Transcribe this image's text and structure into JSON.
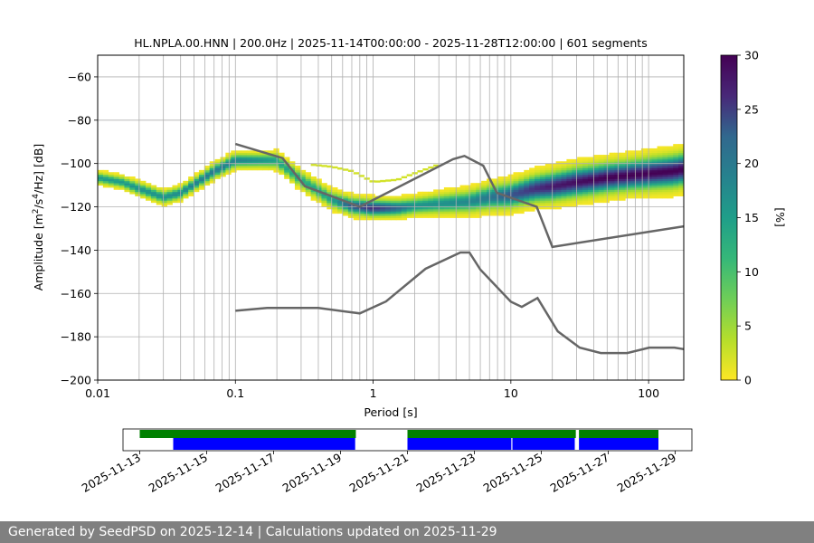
{
  "chart_data": [
    {
      "type": "heatmap",
      "title": "HL.NPLA.00.HNN | 200.0Hz | 2025-11-14T00:00:00 - 2025-11-28T12:00:00 | 601 segments",
      "xlabel": "Period [s]",
      "ylabel_parts": [
        "Amplitude [m",
        "2",
        "/s",
        "4",
        "/Hz] [dB]"
      ],
      "xscale": "log",
      "xlim": [
        0.01,
        180
      ],
      "ylim": [
        -200,
        -50
      ],
      "grid": true,
      "xticks": [
        0.01,
        0.1,
        1,
        10,
        100
      ],
      "xtick_labels": [
        "0.01",
        "0.1",
        "1",
        "10",
        "100"
      ],
      "yticks": [
        -200,
        -180,
        -160,
        -140,
        -120,
        -100,
        -80,
        -60
      ],
      "ytick_labels": [
        "−200",
        "−180",
        "−160",
        "−140",
        "−120",
        "−100",
        "−80",
        "−60"
      ],
      "colorbar": {
        "label": "[%]",
        "colormap": "viridis_r",
        "range": [
          0,
          30
        ],
        "ticks": [
          0,
          5,
          10,
          15,
          20,
          25,
          30
        ],
        "tick_labels": [
          "0",
          "5",
          "10",
          "15",
          "20",
          "25",
          "30"
        ]
      },
      "psd_density": {
        "periods": [
          0.01,
          0.015,
          0.02,
          0.03,
          0.04,
          0.05,
          0.07,
          0.1,
          0.15,
          0.2,
          0.3,
          0.5,
          0.7,
          1,
          1.5,
          2,
          3,
          5,
          7,
          10,
          15,
          20,
          30,
          50,
          70,
          100,
          150,
          180
        ],
        "mode_db": [
          -107,
          -109,
          -112,
          -116,
          -114,
          -110,
          -104,
          -99,
          -99,
          -99,
          -108,
          -117,
          -120,
          -121,
          -121,
          -120,
          -119,
          -118,
          -116,
          -115,
          -112,
          -111,
          -109,
          -107,
          -106,
          -105,
          -104,
          -103
        ],
        "spread_db": [
          8,
          8,
          9,
          9,
          9,
          9,
          10,
          10,
          10,
          11,
          12,
          12,
          12,
          12,
          12,
          12,
          14,
          16,
          18,
          19,
          20,
          21,
          22,
          22,
          22,
          23,
          24,
          24
        ],
        "peak_percent": [
          14,
          14,
          15,
          15,
          16,
          17,
          18,
          17,
          15,
          13,
          12,
          13,
          22,
          26,
          20,
          15,
          15,
          16,
          18,
          22,
          26,
          28,
          29,
          30,
          30,
          30,
          30,
          30
        ]
      },
      "secondary_band": {
        "periods": [
          0.35,
          0.5,
          0.7,
          1,
          1.5,
          2,
          3
        ],
        "db": [
          -101,
          -102,
          -104,
          -109,
          -108,
          -105,
          -101
        ],
        "percent": 2
      },
      "series": [
        {
          "name": "NHNM",
          "color": "#666666",
          "x": [
            0.1,
            0.22,
            0.32,
            0.8,
            3.8,
            4.6,
            6.3,
            7.9,
            15.4,
            20,
            180
          ],
          "y": [
            -91,
            -97.5,
            -110.5,
            -120,
            -98,
            -96.5,
            -101,
            -113.5,
            -120,
            -138.5,
            -129
          ]
        },
        {
          "name": "NLNM",
          "color": "#666666",
          "x": [
            0.1,
            0.17,
            0.4,
            0.8,
            1.24,
            2.4,
            4.3,
            5,
            6,
            10,
            12,
            15.6,
            21.9,
            31.6,
            45,
            70,
            101,
            154,
            180
          ],
          "y": [
            -168,
            -166.7,
            -166.7,
            -169.2,
            -163.7,
            -148.6,
            -141.1,
            -141.1,
            -149,
            -163.8,
            -166.2,
            -162.1,
            -177.5,
            -185,
            -187.5,
            -187.5,
            -185,
            -185,
            -185.7
          ]
        }
      ]
    },
    {
      "type": "timeline",
      "x_range": [
        "2025-11-12T12:00",
        "2025-11-29T12:00"
      ],
      "xtick_labels": [
        "2025-11-13",
        "2025-11-15",
        "2025-11-17",
        "2025-11-19",
        "2025-11-21",
        "2025-11-23",
        "2025-11-25",
        "2025-11-27",
        "2025-11-29"
      ],
      "xticks": [
        "2025-11-13",
        "2025-11-15",
        "2025-11-17",
        "2025-11-19",
        "2025-11-21",
        "2025-11-23",
        "2025-11-25",
        "2025-11-27",
        "2025-11-29"
      ],
      "data_available": {
        "color": "#008000",
        "segments": [
          [
            "2025-11-13T00:00",
            "2025-11-19T11:00"
          ],
          [
            "2025-11-21T00:00",
            "2025-11-26T00:45"
          ],
          [
            "2025-11-26T03:00",
            "2025-11-28T12:00"
          ]
        ]
      },
      "psd_computed": {
        "color": "#0000ff",
        "segments": [
          [
            "2025-11-14T00:00",
            "2025-11-19T10:30"
          ],
          [
            "2025-11-21T00:00",
            "2025-11-24T02:30"
          ],
          [
            "2025-11-24T03:15",
            "2025-11-26T00:00"
          ],
          [
            "2025-11-26T03:00",
            "2025-11-28T12:00"
          ]
        ]
      }
    }
  ],
  "footer": {
    "text": "Generated by SeedPSD on 2025-12-14 | Calculations updated on 2025-11-29"
  }
}
